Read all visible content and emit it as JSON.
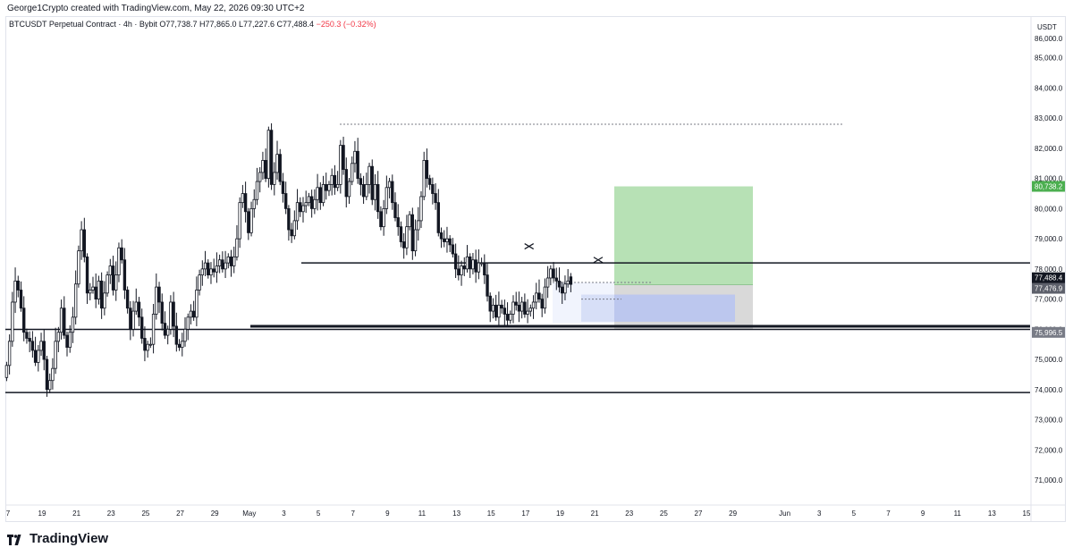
{
  "header": {
    "created_by": "George1Crypto created with TradingView.com, May 22, 2026 09:30 UTC+2"
  },
  "symbol_bar": {
    "title": "BTCUSDT Perpetual Contract · 4h · Bybit",
    "ohlc": "O77,738.7  H77,865.0  L77,227.6  C77,488.4",
    "change": "−250.3 (−0.32%)"
  },
  "footer": {
    "brand": "TradingView",
    "logo_icon": "tradingview-logo-icon"
  },
  "colors": {
    "up": "#ffffff",
    "down": "#131722",
    "candle_border": "#131722",
    "profit_zone": "#b7e1b5",
    "loss_zone": "#d9d9d9",
    "entry_zone": "#b8c4f0",
    "level_line": "#131722",
    "target_label": "#4caf50",
    "price_label": "#131722",
    "level_label": "#787b86"
  },
  "chart_data": {
    "type": "candlestick",
    "timeframe": "4h",
    "currency": "USDT",
    "ylim": [
      70000,
      86800
    ],
    "y_ticks": [
      71000,
      72000,
      73000,
      74000,
      75000,
      76000,
      77000,
      78000,
      79000,
      80000,
      81000,
      82000,
      83000,
      84000,
      85000,
      86000
    ],
    "y_tick_labels": [
      "71,000.0",
      "72,000.0",
      "73,000.0",
      "74,000.0",
      "75,000.0",
      "76,000.0",
      "77,000.0",
      "78,000.0",
      "79,000.0",
      "80,000.0",
      "81,000.0",
      "82,000.0",
      "83,000.0",
      "84,000.0",
      "85,000.0",
      "86,000.0"
    ],
    "x_tick_labels": [
      "7",
      "19",
      "21",
      "23",
      "25",
      "27",
      "29",
      "May",
      "3",
      "5",
      "7",
      "9",
      "11",
      "13",
      "15",
      "17",
      "19",
      "21",
      "23",
      "25",
      "27",
      "29",
      "Jun",
      "3",
      "5",
      "7",
      "9",
      "11",
      "13",
      "15"
    ],
    "x_tick_days": [
      16.5,
      19,
      21,
      23,
      25,
      27,
      29,
      31,
      33,
      35,
      37,
      39,
      41,
      43,
      45,
      47,
      49,
      51,
      53,
      55,
      57,
      59,
      62,
      64,
      66,
      68,
      70,
      72,
      74,
      76
    ],
    "closes": [
      74800,
      75600,
      76900,
      77600,
      77300,
      76700,
      75900,
      75700,
      75600,
      75300,
      74900,
      75300,
      75600,
      75000,
      74000,
      74300,
      74700,
      75600,
      75900,
      76700,
      75800,
      75400,
      75900,
      76400,
      77500,
      78600,
      79300,
      78400,
      77200,
      77300,
      77400,
      77000,
      77600,
      76700,
      77200,
      77800,
      78100,
      77300,
      77800,
      78700,
      78300,
      77300,
      76700,
      76000,
      76600,
      76900,
      76400,
      75700,
      75300,
      75500,
      75500,
      76500,
      77400,
      76900,
      76200,
      75800,
      76000,
      76900,
      76100,
      75500,
      75400,
      75600,
      76000,
      76400,
      76600,
      76400,
      77300,
      77800,
      78000,
      78200,
      77800,
      78000,
      77900,
      78100,
      78300,
      78000,
      78200,
      78400,
      78100,
      78400,
      79000,
      80200,
      80500,
      79900,
      79200,
      80000,
      80300,
      80900,
      81200,
      81600,
      81000,
      82600,
      80800,
      81200,
      81800,
      80900,
      80500,
      80000,
      79300,
      79100,
      79600,
      80200,
      79900,
      80100,
      80200,
      80400,
      80000,
      80300,
      80700,
      80200,
      80800,
      80600,
      80800,
      81100,
      80700,
      80800,
      82100,
      81300,
      80400,
      80900,
      81500,
      81900,
      81000,
      80800,
      80400,
      80800,
      81400,
      80300,
      80800,
      79900,
      79400,
      80000,
      80700,
      80900,
      80200,
      79700,
      79400,
      78900,
      78700,
      79400,
      79800,
      78600,
      79300,
      79600,
      80400,
      81600,
      81000,
      80800,
      80500,
      80200,
      79200,
      79000,
      78900,
      79000,
      78800,
      78500,
      78000,
      77800,
      78100,
      78000,
      78400,
      78000,
      78300,
      77900,
      78200,
      78200,
      77800,
      77100,
      76600,
      76800,
      76400,
      76800,
      76700,
      76500,
      76300,
      76500,
      76900,
      76800,
      76600,
      76900,
      76500,
      76600,
      76700,
      76900,
      77200,
      77000,
      76700,
      77400,
      77700,
      78000,
      77700,
      77600,
      77400,
      77200,
      77500,
      77600,
      77488.4
    ],
    "ohlc_last": {
      "open": 77738.7,
      "high": 77865.0,
      "low": 77227.6,
      "close": 77488.4
    },
    "levels": [
      {
        "price": 78200,
        "label": ""
      },
      {
        "price": 76100,
        "label": ""
      },
      {
        "price": 75996.5,
        "label": "75,996.5"
      },
      {
        "price": 73900,
        "label": ""
      },
      {
        "price": 82800,
        "label": ""
      }
    ],
    "position": {
      "entry": 77476.9,
      "target": 80738.2,
      "stop": 75996.5
    },
    "price_labels": {
      "target": "80,738.2",
      "last": "77,488.4",
      "countdown": "29:40",
      "entry": "77,476.9",
      "stop": "75,996.5"
    },
    "markers": [
      {
        "type": "cross",
        "day": 47.2,
        "price": 78750
      },
      {
        "type": "cross",
        "day": 51.2,
        "price": 78300
      }
    ]
  }
}
